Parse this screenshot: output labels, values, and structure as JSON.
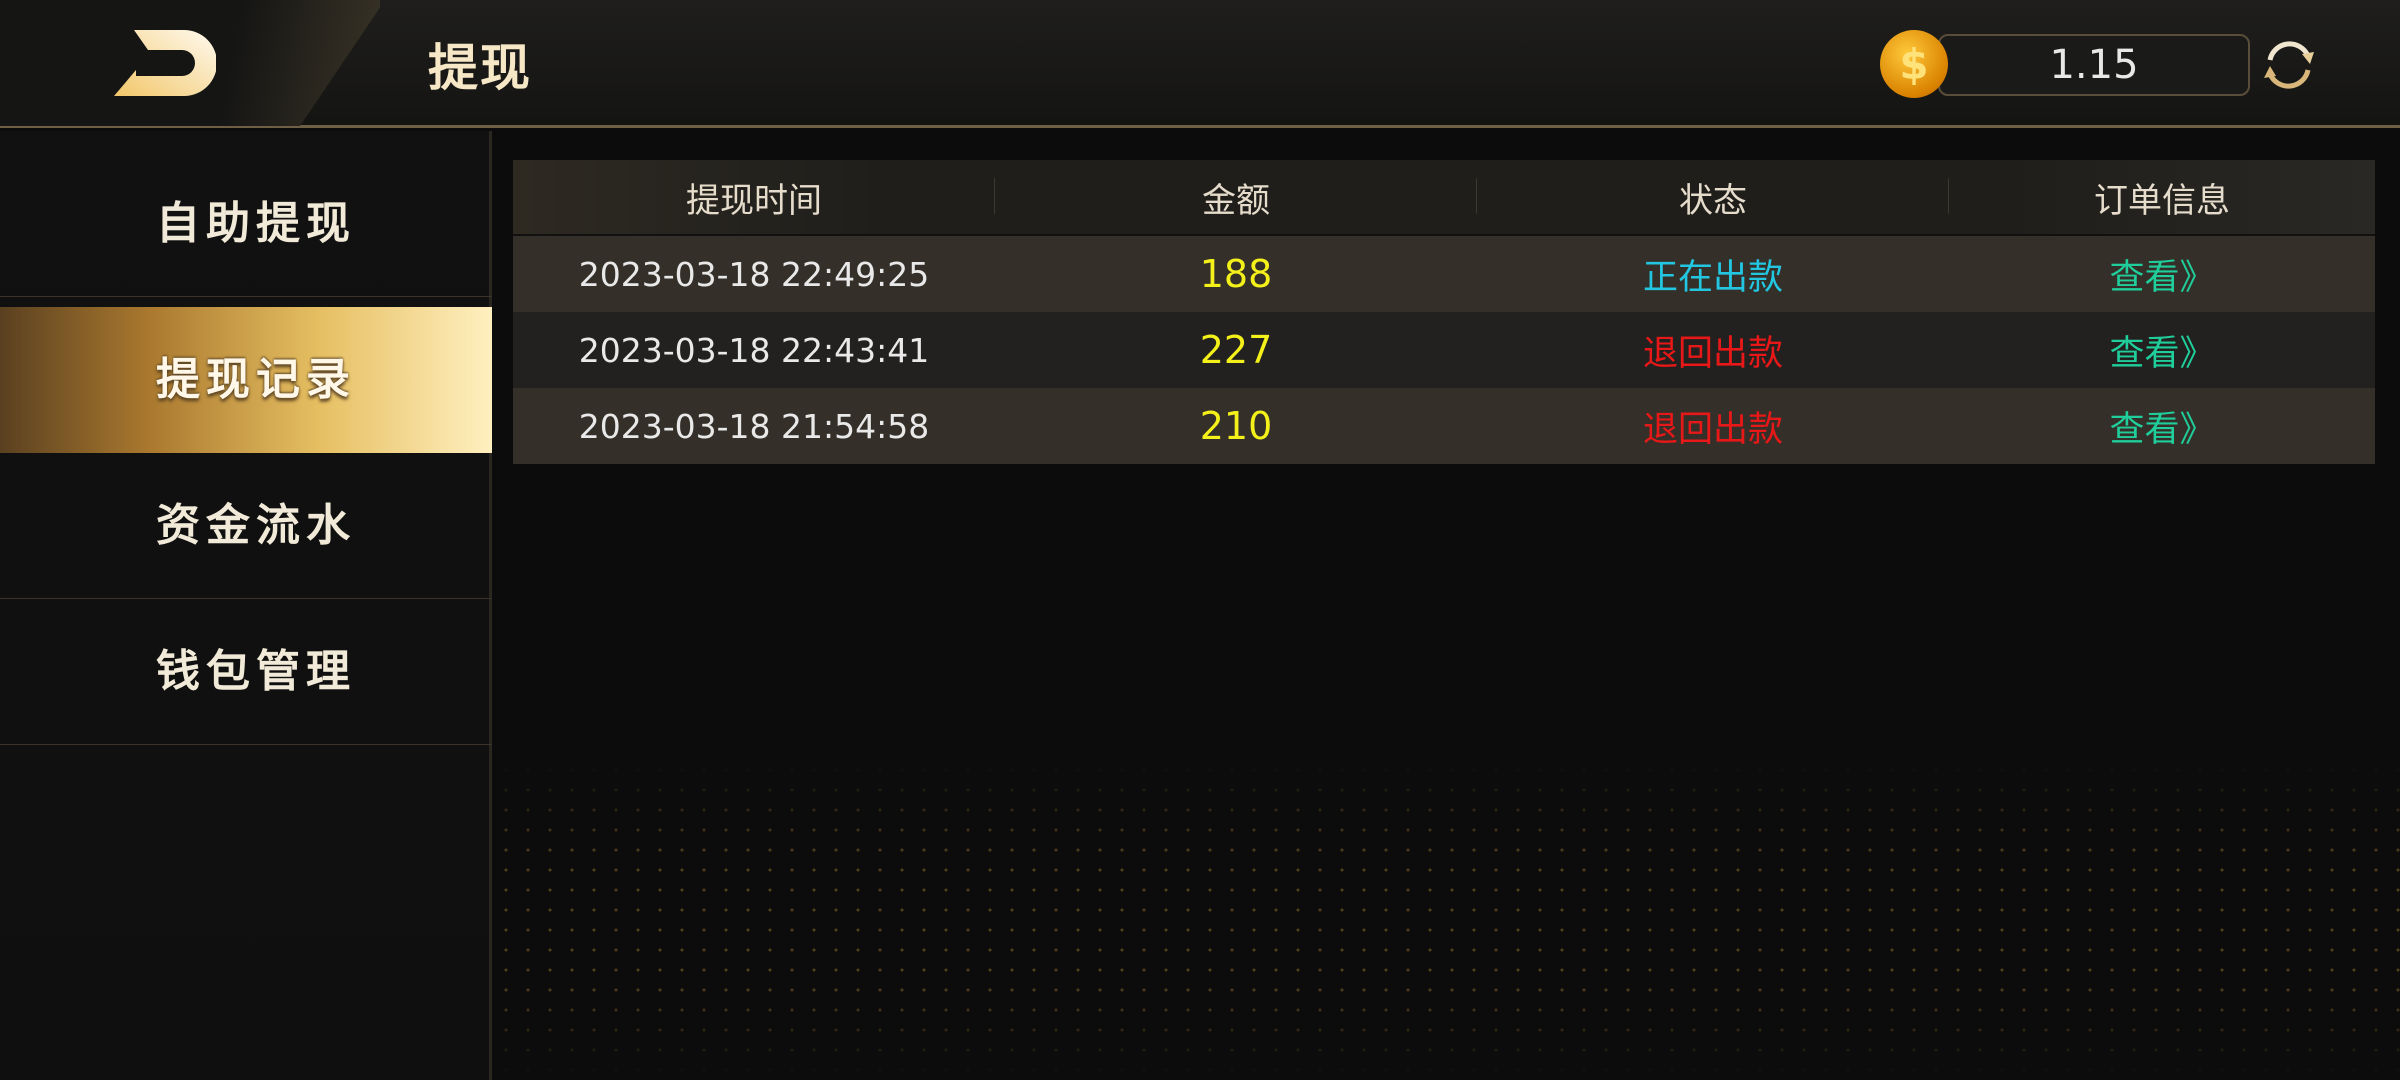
{
  "header": {
    "title": "提现",
    "balance": "1.15",
    "coin_icon": "coin-dollar-icon",
    "refresh_icon": "refresh-icon",
    "back_icon": "back-logo-icon"
  },
  "sidebar": {
    "items": [
      {
        "label": "自助提现",
        "active": false
      },
      {
        "label": "提现记录",
        "active": true
      },
      {
        "label": "资金流水",
        "active": false
      },
      {
        "label": "钱包管理",
        "active": false
      }
    ]
  },
  "table": {
    "columns": [
      "提现时间",
      "金额",
      "状态",
      "订单信息"
    ],
    "rows": [
      {
        "time": "2023-03-18 22:49:25",
        "amount": "188",
        "status": "正在出款",
        "status_color": "#22c6e0",
        "action": "查看》"
      },
      {
        "time": "2023-03-18 22:43:41",
        "amount": "227",
        "status": "退回出款",
        "status_color": "#e81818",
        "action": "查看》"
      },
      {
        "time": "2023-03-18 21:54:58",
        "amount": "210",
        "status": "退回出款",
        "status_color": "#e81818",
        "action": "查看》"
      }
    ]
  },
  "colors": {
    "accent_gold": "#e6bf62",
    "amount": "#f4f01a",
    "link": "#1fce9a"
  }
}
